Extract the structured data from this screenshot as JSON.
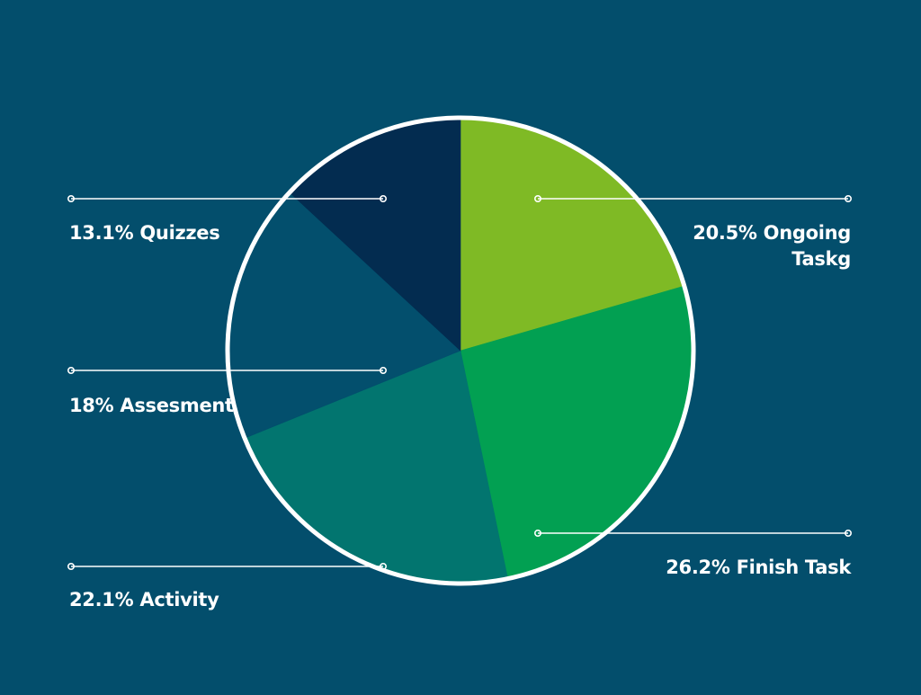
{
  "colors": {
    "background": "#034e6c",
    "outline": "#ffffff",
    "leader_line": "#ffffff"
  },
  "chart_data": {
    "type": "pie",
    "start_angle_deg": 0,
    "direction": "clockwise",
    "title": "",
    "slices": [
      {
        "value": 20.5,
        "color": "#7fba25"
      },
      {
        "value": 26.2,
        "color": "#02a052"
      },
      {
        "value": 22.1,
        "color": "#02756f"
      },
      {
        "value": 18,
        "color": "#034f6d"
      },
      {
        "value": 13.1,
        "color": "#032c50"
      }
    ],
    "labels": [
      {
        "lines": [
          "20.5% Ongoing",
          "Taskg"
        ]
      },
      {
        "lines": [
          "26.2% Finish Task"
        ]
      },
      {
        "lines": [
          "22.1% Activity"
        ]
      },
      {
        "lines": [
          "18% Assesment"
        ]
      },
      {
        "lines": [
          "13.1% Quizzes"
        ]
      }
    ]
  }
}
